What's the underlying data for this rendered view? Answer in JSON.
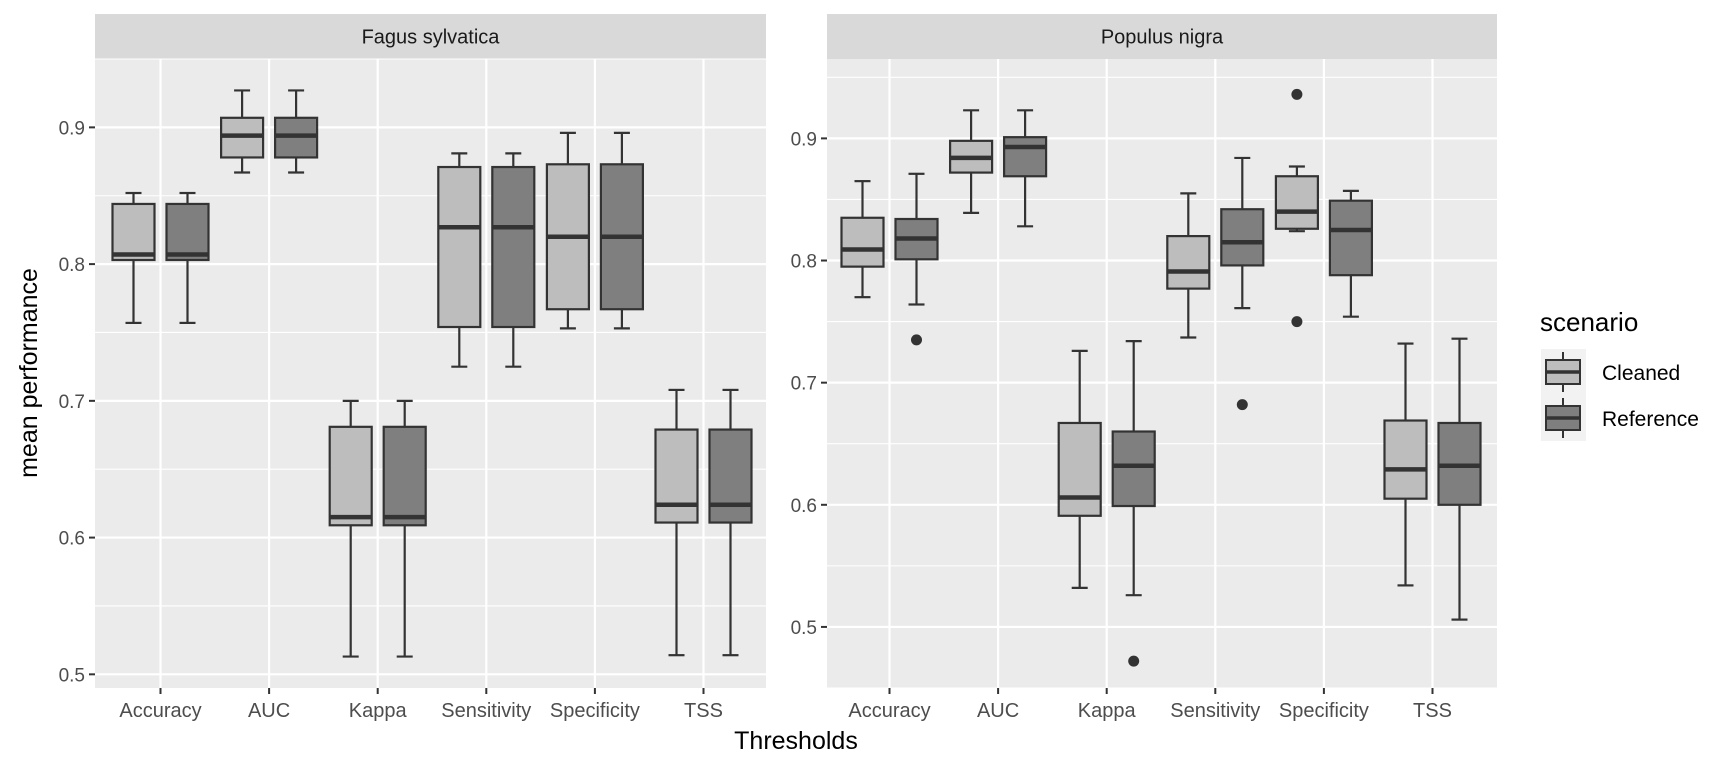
{
  "chart_data": {
    "type": "boxplot",
    "xlabel": "Thresholds",
    "ylabel": "mean performance",
    "categories": [
      "Accuracy",
      "AUC",
      "Kappa",
      "Sensitivity",
      "Specificity",
      "TSS"
    ],
    "legend": {
      "title": "scenario",
      "position": "right",
      "entries": [
        {
          "name": "Cleaned",
          "color": "#bdbdbd"
        },
        {
          "name": "Reference",
          "color": "#7f7f7f"
        }
      ]
    },
    "colors": {
      "panel_bg": "#ebebeb",
      "strip_bg": "#d9d9d9",
      "grid": "#ffffff",
      "box_line": "#333333"
    },
    "panels": [
      {
        "title": "Fagus sylvatica",
        "ylim": [
          0.49,
          0.95
        ],
        "yticks": [
          0.5,
          0.6,
          0.7,
          0.8,
          0.9
        ],
        "boxes": [
          {
            "category": "Accuracy",
            "scenario": "Cleaned",
            "min": 0.757,
            "q1": 0.803,
            "median": 0.807,
            "q3": 0.844,
            "max": 0.852,
            "outliers": []
          },
          {
            "category": "Accuracy",
            "scenario": "Reference",
            "min": 0.757,
            "q1": 0.803,
            "median": 0.807,
            "q3": 0.844,
            "max": 0.852,
            "outliers": []
          },
          {
            "category": "AUC",
            "scenario": "Cleaned",
            "min": 0.867,
            "q1": 0.878,
            "median": 0.894,
            "q3": 0.907,
            "max": 0.927,
            "outliers": []
          },
          {
            "category": "AUC",
            "scenario": "Reference",
            "min": 0.867,
            "q1": 0.878,
            "median": 0.894,
            "q3": 0.907,
            "max": 0.927,
            "outliers": []
          },
          {
            "category": "Kappa",
            "scenario": "Cleaned",
            "min": 0.513,
            "q1": 0.609,
            "median": 0.615,
            "q3": 0.681,
            "max": 0.7,
            "outliers": []
          },
          {
            "category": "Kappa",
            "scenario": "Reference",
            "min": 0.513,
            "q1": 0.609,
            "median": 0.615,
            "q3": 0.681,
            "max": 0.7,
            "outliers": []
          },
          {
            "category": "Sensitivity",
            "scenario": "Cleaned",
            "min": 0.725,
            "q1": 0.754,
            "median": 0.827,
            "q3": 0.871,
            "max": 0.881,
            "outliers": []
          },
          {
            "category": "Sensitivity",
            "scenario": "Reference",
            "min": 0.725,
            "q1": 0.754,
            "median": 0.827,
            "q3": 0.871,
            "max": 0.881,
            "outliers": []
          },
          {
            "category": "Specificity",
            "scenario": "Cleaned",
            "min": 0.753,
            "q1": 0.767,
            "median": 0.82,
            "q3": 0.873,
            "max": 0.896,
            "outliers": []
          },
          {
            "category": "Specificity",
            "scenario": "Reference",
            "min": 0.753,
            "q1": 0.767,
            "median": 0.82,
            "q3": 0.873,
            "max": 0.896,
            "outliers": []
          },
          {
            "category": "TSS",
            "scenario": "Cleaned",
            "min": 0.514,
            "q1": 0.611,
            "median": 0.624,
            "q3": 0.679,
            "max": 0.708,
            "outliers": []
          },
          {
            "category": "TSS",
            "scenario": "Reference",
            "min": 0.514,
            "q1": 0.611,
            "median": 0.624,
            "q3": 0.679,
            "max": 0.708,
            "outliers": []
          }
        ]
      },
      {
        "title": "Populus nigra",
        "ylim": [
          0.45,
          0.965
        ],
        "yticks": [
          0.5,
          0.6,
          0.7,
          0.8,
          0.9
        ],
        "boxes": [
          {
            "category": "Accuracy",
            "scenario": "Cleaned",
            "min": 0.77,
            "q1": 0.795,
            "median": 0.809,
            "q3": 0.835,
            "max": 0.865,
            "outliers": []
          },
          {
            "category": "Accuracy",
            "scenario": "Reference",
            "min": 0.764,
            "q1": 0.801,
            "median": 0.818,
            "q3": 0.834,
            "max": 0.871,
            "outliers": [
              0.735
            ]
          },
          {
            "category": "AUC",
            "scenario": "Cleaned",
            "min": 0.839,
            "q1": 0.872,
            "median": 0.884,
            "q3": 0.898,
            "max": 0.923,
            "outliers": []
          },
          {
            "category": "AUC",
            "scenario": "Reference",
            "min": 0.828,
            "q1": 0.869,
            "median": 0.893,
            "q3": 0.901,
            "max": 0.923,
            "outliers": []
          },
          {
            "category": "Kappa",
            "scenario": "Cleaned",
            "min": 0.532,
            "q1": 0.591,
            "median": 0.606,
            "q3": 0.667,
            "max": 0.726,
            "outliers": []
          },
          {
            "category": "Kappa",
            "scenario": "Reference",
            "min": 0.526,
            "q1": 0.599,
            "median": 0.632,
            "q3": 0.66,
            "max": 0.734,
            "outliers": [
              0.472
            ]
          },
          {
            "category": "Sensitivity",
            "scenario": "Cleaned",
            "min": 0.737,
            "q1": 0.777,
            "median": 0.791,
            "q3": 0.82,
            "max": 0.855,
            "outliers": []
          },
          {
            "category": "Sensitivity",
            "scenario": "Reference",
            "min": 0.761,
            "q1": 0.796,
            "median": 0.815,
            "q3": 0.842,
            "max": 0.884,
            "outliers": [
              0.682
            ]
          },
          {
            "category": "Specificity",
            "scenario": "Cleaned",
            "min": 0.824,
            "q1": 0.826,
            "median": 0.84,
            "q3": 0.869,
            "max": 0.877,
            "outliers": [
              0.75,
              0.936
            ]
          },
          {
            "category": "Specificity",
            "scenario": "Reference",
            "min": 0.754,
            "q1": 0.788,
            "median": 0.825,
            "q3": 0.849,
            "max": 0.857,
            "outliers": []
          },
          {
            "category": "TSS",
            "scenario": "Cleaned",
            "min": 0.534,
            "q1": 0.605,
            "median": 0.629,
            "q3": 0.669,
            "max": 0.732,
            "outliers": []
          },
          {
            "category": "TSS",
            "scenario": "Reference",
            "min": 0.506,
            "q1": 0.6,
            "median": 0.632,
            "q3": 0.667,
            "max": 0.736,
            "outliers": []
          }
        ]
      }
    ]
  }
}
